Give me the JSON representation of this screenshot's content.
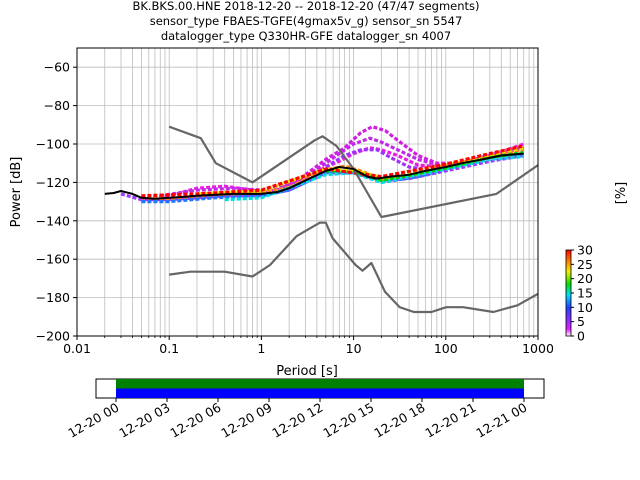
{
  "chart_data": [
    {
      "type": "heatmap",
      "title_lines": [
        "BK.BKS.00.HNE   2018-12-20 -- 2018-12-20  (47/47 segments)",
        "sensor_type FBAES-TGFE(4gmax5v_g) sensor_sn 5547",
        "datalogger_type Q330HR-GFE datalogger_sn 4007"
      ],
      "xlabel": "Period [s]",
      "ylabel": "Power [dB]",
      "xscale": "log",
      "xlim": [
        0.01,
        1000
      ],
      "ylim": [
        -200,
        -50
      ],
      "x_ticks": [
        0.01,
        0.1,
        1,
        10,
        100,
        1000
      ],
      "x_tick_labels": [
        "0.01",
        "0.1",
        "1",
        "10",
        "100",
        "1000"
      ],
      "y_ticks": [
        -200,
        -180,
        -160,
        -140,
        -120,
        -100,
        -80,
        -60
      ],
      "y_tick_labels": [
        "−200",
        "−180",
        "−160",
        "−140",
        "−120",
        "−100",
        "−80",
        "−60"
      ],
      "grid": true,
      "colorbar": {
        "label": "[%]",
        "range": [
          0,
          30
        ],
        "ticks": [
          0,
          5,
          10,
          15,
          20,
          25,
          30
        ],
        "tick_labels": [
          "0",
          "5",
          "10",
          "15",
          "20",
          "25",
          "30"
        ],
        "colormap": "pqlx"
      },
      "noise_models": [
        {
          "role": "upper",
          "color": "#666666",
          "points": [
            [
              0.1,
              -91
            ],
            [
              0.22,
              -97
            ],
            [
              0.32,
              -110
            ],
            [
              0.8,
              -120
            ],
            [
              3.8,
              -98
            ],
            [
              4.6,
              -96
            ],
            [
              6.5,
              -101
            ],
            [
              10,
              -113
            ],
            [
              20,
              -138
            ],
            [
              354,
              -126
            ],
            [
              1000,
              -111
            ]
          ]
        },
        {
          "role": "lower",
          "color": "#666666",
          "points": [
            [
              0.1,
              -168
            ],
            [
              0.17,
              -166.5
            ],
            [
              0.4,
              -166.5
            ],
            [
              0.8,
              -169
            ],
            [
              1.24,
              -163
            ],
            [
              2.4,
              -148
            ],
            [
              4.3,
              -141
            ],
            [
              5,
              -141
            ],
            [
              5.9,
              -149
            ],
            [
              10.5,
              -163
            ],
            [
              12.5,
              -166
            ],
            [
              15.6,
              -162
            ],
            [
              21.9,
              -177
            ],
            [
              31.6,
              -185
            ],
            [
              45,
              -187.5
            ],
            [
              70,
              -187.5
            ],
            [
              101,
              -185
            ],
            [
              154,
              -185
            ],
            [
              328,
              -187.5
            ],
            [
              600,
              -184
            ],
            [
              1000,
              -178
            ]
          ]
        }
      ],
      "mode_curve": {
        "color": "#000000",
        "points": [
          [
            0.02,
            -126
          ],
          [
            0.025,
            -125.5
          ],
          [
            0.03,
            -124.5
          ],
          [
            0.04,
            -126
          ],
          [
            0.05,
            -128
          ],
          [
            0.07,
            -128.5
          ],
          [
            0.1,
            -128
          ],
          [
            0.15,
            -127.5
          ],
          [
            0.2,
            -127
          ],
          [
            0.3,
            -126.5
          ],
          [
            0.5,
            -126
          ],
          [
            1,
            -126
          ],
          [
            1.5,
            -125
          ],
          [
            2,
            -123
          ],
          [
            3,
            -119
          ],
          [
            5,
            -114
          ],
          [
            7,
            -112
          ],
          [
            10,
            -113
          ],
          [
            14,
            -117
          ],
          [
            18,
            -118
          ],
          [
            25,
            -117
          ],
          [
            40,
            -116
          ],
          [
            60,
            -114
          ],
          [
            100,
            -112
          ],
          [
            150,
            -110
          ],
          [
            250,
            -108
          ],
          [
            400,
            -106
          ],
          [
            700,
            -105
          ]
        ]
      },
      "pdf_curves": [
        {
          "color": "#e81dde",
          "points": [
            [
              0.05,
              -129
            ],
            [
              0.1,
              -127
            ],
            [
              0.2,
              -123
            ],
            [
              0.4,
              -122
            ],
            [
              0.8,
              -124
            ],
            [
              1,
              -125
            ],
            [
              1.5,
              -124
            ],
            [
              2,
              -121
            ],
            [
              3,
              -118
            ],
            [
              5,
              -112
            ],
            [
              7,
              -109
            ],
            [
              10,
              -105
            ],
            [
              15,
              -102
            ],
            [
              20,
              -103
            ],
            [
              30,
              -106
            ],
            [
              50,
              -111
            ],
            [
              100,
              -112
            ],
            [
              200,
              -108
            ],
            [
              400,
              -104
            ],
            [
              700,
              -100
            ]
          ]
        },
        {
          "color": "#c02ae6",
          "points": [
            [
              0.08,
              -127
            ],
            [
              0.2,
              -124
            ],
            [
              0.5,
              -123
            ],
            [
              1,
              -124
            ],
            [
              2,
              -121
            ],
            [
              3,
              -117
            ],
            [
              5,
              -110
            ],
            [
              7,
              -105
            ],
            [
              10,
              -100
            ],
            [
              15,
              -97
            ],
            [
              20,
              -99
            ],
            [
              30,
              -103
            ],
            [
              50,
              -108
            ],
            [
              100,
              -112
            ],
            [
              300,
              -106
            ],
            [
              700,
              -102
            ]
          ]
        },
        {
          "color": "#d020e0",
          "points": [
            [
              3,
              -116
            ],
            [
              5,
              -108
            ],
            [
              8,
              -102
            ],
            [
              12,
              -94
            ],
            [
              16,
              -91
            ],
            [
              22,
              -93
            ],
            [
              30,
              -98
            ],
            [
              50,
              -106
            ],
            [
              80,
              -110
            ],
            [
              150,
              -110
            ]
          ]
        },
        {
          "color": "#a030ff",
          "points": [
            [
              5,
              -112
            ],
            [
              8,
              -106
            ],
            [
              12,
              -103
            ],
            [
              18,
              -103
            ],
            [
              25,
              -107
            ],
            [
              40,
              -112
            ],
            [
              80,
              -114
            ]
          ]
        },
        {
          "color": "#9b3cff",
          "points": [
            [
              0.03,
              -126
            ],
            [
              0.05,
              -129
            ],
            [
              0.1,
              -129
            ],
            [
              0.2,
              -128
            ],
            [
              0.4,
              -127
            ],
            [
              1,
              -127
            ],
            [
              2,
              -124
            ],
            [
              5,
              -115
            ],
            [
              10,
              -115
            ],
            [
              20,
              -119
            ],
            [
              40,
              -118
            ],
            [
              100,
              -114
            ],
            [
              300,
              -109
            ],
            [
              700,
              -106
            ]
          ]
        },
        {
          "color": "#ff7f0e",
          "points": [
            [
              0.05,
              -128
            ],
            [
              0.1,
              -128.5
            ],
            [
              0.3,
              -127
            ],
            [
              1,
              -125.5
            ],
            [
              2,
              -122.5
            ],
            [
              5,
              -113.5
            ],
            [
              8,
              -111.5
            ],
            [
              12,
              -114
            ],
            [
              20,
              -118.5
            ],
            [
              50,
              -116
            ],
            [
              100,
              -111.5
            ],
            [
              300,
              -106.5
            ],
            [
              700,
              -103
            ]
          ]
        },
        {
          "color": "#1f77ff",
          "points": [
            [
              0.05,
              -130
            ],
            [
              0.1,
              -130
            ],
            [
              0.3,
              -128
            ],
            [
              1,
              -127
            ],
            [
              2,
              -124
            ],
            [
              5,
              -115
            ],
            [
              10,
              -115
            ],
            [
              20,
              -120
            ],
            [
              50,
              -117
            ],
            [
              100,
              -113
            ],
            [
              300,
              -108
            ],
            [
              700,
              -105
            ]
          ]
        },
        {
          "color": "#00e0e0",
          "points": [
            [
              0.4,
              -129
            ],
            [
              1,
              -128
            ],
            [
              5,
              -116
            ],
            [
              10,
              -115
            ],
            [
              20,
              -120
            ],
            [
              100,
              -113
            ],
            [
              300,
              -108
            ],
            [
              700,
              -106.5
            ]
          ]
        },
        {
          "color": "#00d000",
          "points": [
            [
              5,
              -114
            ],
            [
              10,
              -114
            ],
            [
              20,
              -119
            ],
            [
              100,
              -112.5
            ],
            [
              300,
              -107
            ],
            [
              700,
              -104.5
            ]
          ]
        },
        {
          "color": "#e8e800",
          "points": [
            [
              0.2,
              -126
            ],
            [
              1,
              -124.5
            ],
            [
              5,
              -113
            ],
            [
              10,
              -113.5
            ],
            [
              20,
              -117.5
            ],
            [
              100,
              -111
            ],
            [
              300,
              -105.5
            ],
            [
              700,
              -102
            ]
          ]
        },
        {
          "color": "#ff0000",
          "points": [
            [
              0.05,
              -127
            ],
            [
              0.2,
              -126
            ],
            [
              1,
              -124
            ],
            [
              5,
              -113
            ],
            [
              20,
              -117
            ],
            [
              100,
              -110.5
            ],
            [
              300,
              -105
            ],
            [
              700,
              -101
            ]
          ]
        }
      ]
    },
    {
      "type": "timeline",
      "x_tick_labels": [
        "12-20 00",
        "12-20 03",
        "12-20 06",
        "12-20 09",
        "12-20 12",
        "12-20 15",
        "12-20 18",
        "12-20 21",
        "12-21 00"
      ],
      "bars": [
        {
          "role": "data coverage",
          "color": "#008000",
          "start": "12-20 00",
          "end": "12-21 00"
        },
        {
          "role": "segments used",
          "color": "#0000ff",
          "start": "12-20 00",
          "end": "12-21 00"
        }
      ]
    }
  ]
}
